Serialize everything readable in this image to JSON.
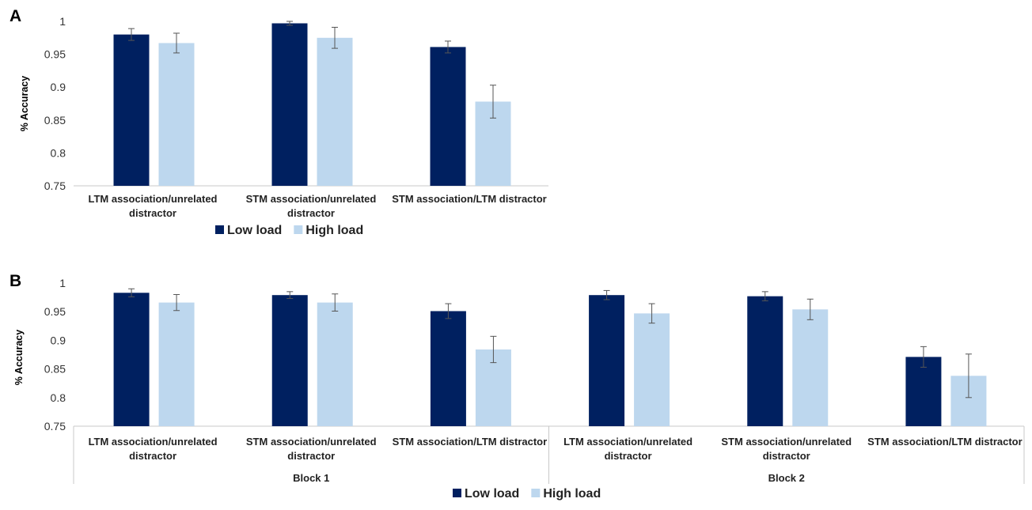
{
  "chart_data": [
    {
      "panel": "A",
      "type": "bar",
      "ylabel": "% Accuracy",
      "ylim": [
        0.75,
        1
      ],
      "yticks": [
        "0.75",
        "0.8",
        "0.85",
        "0.9",
        "0.95",
        "1"
      ],
      "categories": [
        [
          "LTM association/unrelated",
          "distractor"
        ],
        [
          "STM association/unrelated",
          "distractor"
        ],
        [
          "STM association/LTM distractor"
        ]
      ],
      "series": [
        {
          "name": "Low load",
          "color": "#002060",
          "values": [
            0.98,
            0.997,
            0.961
          ],
          "errors": [
            0.009,
            0.003,
            0.009
          ]
        },
        {
          "name": "High load",
          "color": "#BDD7EE",
          "values": [
            0.967,
            0.975,
            0.878
          ],
          "errors": [
            0.015,
            0.016,
            0.025
          ]
        }
      ],
      "legend_position": "bottom"
    },
    {
      "panel": "B",
      "type": "bar",
      "ylabel": "% Accuracy",
      "ylim": [
        0.75,
        1
      ],
      "yticks": [
        "0.75",
        "0.8",
        "0.85",
        "0.9",
        "0.95",
        "1"
      ],
      "categories": [
        [
          "LTM association/unrelated",
          "distractor"
        ],
        [
          "STM association/unrelated",
          "distractor"
        ],
        [
          "STM association/LTM distractor"
        ],
        [
          "LTM association/unrelated",
          "distractor"
        ],
        [
          "STM association/unrelated",
          "distractor"
        ],
        [
          "STM association/LTM distractor"
        ]
      ],
      "groups": [
        "Block 1",
        "Block 2"
      ],
      "series": [
        {
          "name": "Low load",
          "color": "#002060",
          "values": [
            0.983,
            0.979,
            0.951,
            0.979,
            0.977,
            0.871
          ],
          "errors": [
            0.007,
            0.006,
            0.013,
            0.008,
            0.008,
            0.018
          ]
        },
        {
          "name": "High load",
          "color": "#BDD7EE",
          "values": [
            0.966,
            0.966,
            0.884,
            0.947,
            0.954,
            0.838
          ],
          "errors": [
            0.014,
            0.015,
            0.023,
            0.017,
            0.018,
            0.038
          ]
        }
      ],
      "legend_position": "bottom"
    }
  ]
}
